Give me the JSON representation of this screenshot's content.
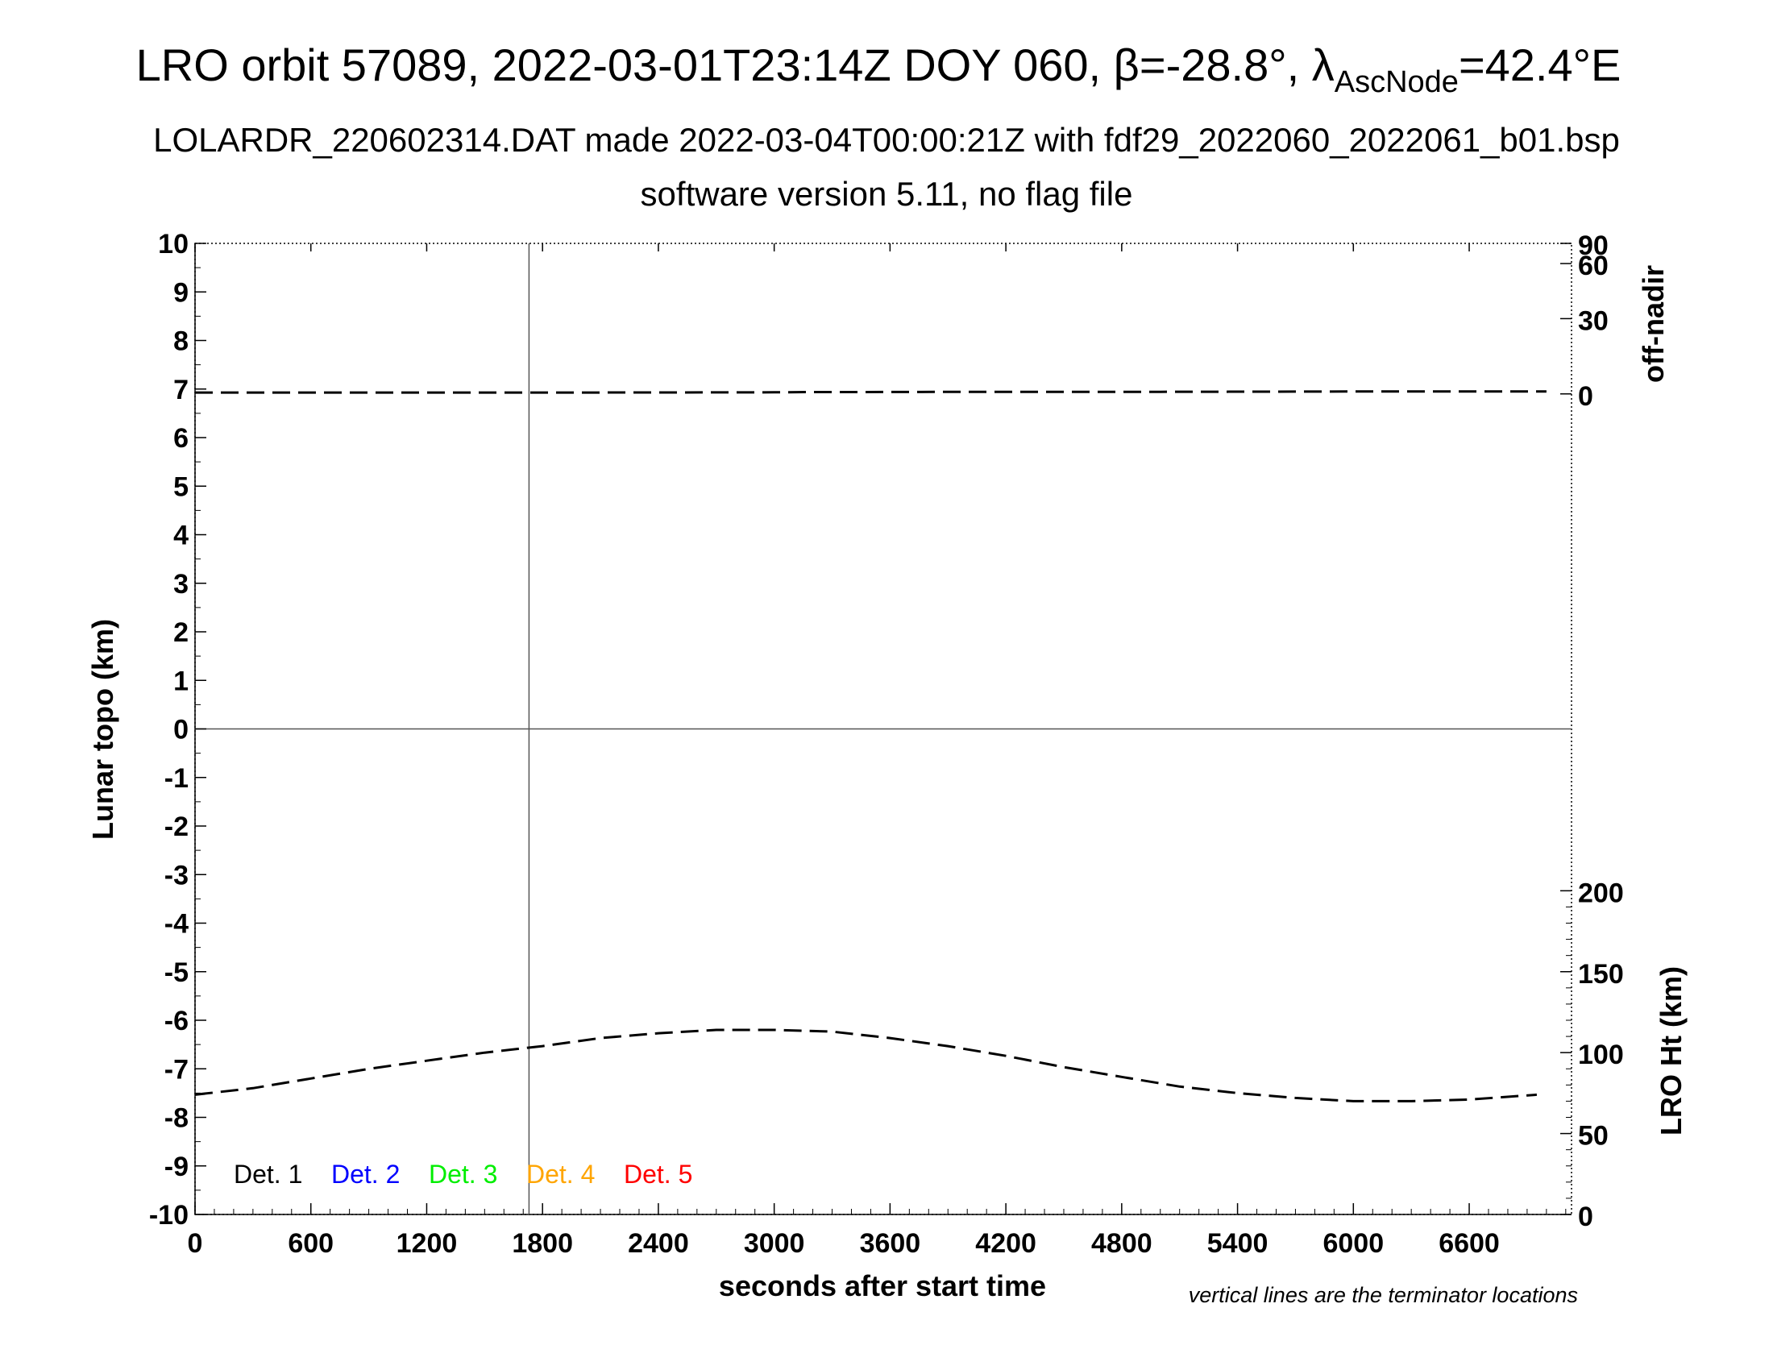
{
  "chart_data": {
    "type": "line",
    "title": {
      "main": "LRO orbit 57089, 2022-03-01T23:14Z DOY 060, β=-28.8°, λ",
      "sub": "AscNode",
      "tail": "=42.4°E"
    },
    "subtitle1": "LOLARDR_220602314.DAT made 2022-03-04T00:00:21Z with fdf29_2022060_2022061_b01.bsp",
    "subtitle2": "software version 5.11, no flag file",
    "xlabel": "seconds after start time",
    "ylabel_left": "Lunar topo (km)",
    "ylabel_right_top": "off-nadir",
    "ylabel_right_bottom": "LRO Ht (km)",
    "note": "vertical lines are the terminator locations",
    "xlim": [
      0,
      7130
    ],
    "ylim": [
      -10,
      10
    ],
    "x_ticks": [
      "0",
      "600",
      "1200",
      "1800",
      "2400",
      "3000",
      "3600",
      "4200",
      "4800",
      "5400",
      "6000",
      "6600"
    ],
    "x_tick_values": [
      0,
      600,
      1200,
      1800,
      2400,
      3000,
      3600,
      4200,
      4800,
      5400,
      6000,
      6600
    ],
    "y_ticks": [
      "10",
      "9",
      "8",
      "7",
      "6",
      "5",
      "4",
      "3",
      "2",
      "1",
      "0",
      "-1",
      "-2",
      "-3",
      "-4",
      "-5",
      "-6",
      "-7",
      "-8",
      "-9",
      "-10"
    ],
    "y_tick_values": [
      10,
      9,
      8,
      7,
      6,
      5,
      4,
      3,
      2,
      1,
      0,
      -1,
      -2,
      -3,
      -4,
      -5,
      -6,
      -7,
      -8,
      -9,
      -10
    ],
    "right_top_ticks": [
      "90",
      "60",
      "30",
      "0"
    ],
    "right_top_values": [
      90,
      60,
      30,
      0
    ],
    "right_top_range": [
      0,
      90
    ],
    "right_top_ylim_left": [
      6.9,
      10
    ],
    "right_bottom_ticks": [
      "200",
      "150",
      "100",
      "50",
      "0"
    ],
    "right_bottom_values": [
      200,
      150,
      100,
      50,
      0
    ],
    "right_bottom_range": [
      0,
      300
    ],
    "right_bottom_ylim_left": [
      -10,
      0
    ],
    "terminator_x": [
      1730
    ],
    "zero_line": 0,
    "legend": [
      {
        "label": "Det. 1",
        "color": "#000000"
      },
      {
        "label": "Det. 2",
        "color": "#0000ff"
      },
      {
        "label": "Det. 3",
        "color": "#00ee00"
      },
      {
        "label": "Det. 4",
        "color": "#ffa500"
      },
      {
        "label": "Det. 5",
        "color": "#ff0000"
      }
    ],
    "series": [
      {
        "axis": "off-nadir",
        "color": "#000000",
        "style": "dashed",
        "x": [
          0,
          1000,
          2000,
          3000,
          3200,
          3400,
          4000,
          5000,
          6000,
          7000
        ],
        "values": [
          0.5,
          0.5,
          0.5,
          0.6,
          0.7,
          0.7,
          0.8,
          0.8,
          0.9,
          0.9
        ]
      },
      {
        "axis": "LRO Ht (km)",
        "color": "#000000",
        "style": "dashed",
        "x": [
          0,
          300,
          600,
          900,
          1200,
          1500,
          1800,
          2100,
          2400,
          2700,
          3000,
          3300,
          3600,
          3900,
          4200,
          4500,
          4800,
          5100,
          5400,
          5700,
          6000,
          6300,
          6600,
          6950
        ],
        "values": [
          74,
          78,
          84,
          90,
          95,
          100,
          104,
          109,
          112,
          114,
          114,
          113,
          109,
          104,
          98,
          91,
          85,
          79,
          75,
          72,
          70,
          70,
          71,
          74
        ]
      }
    ]
  }
}
